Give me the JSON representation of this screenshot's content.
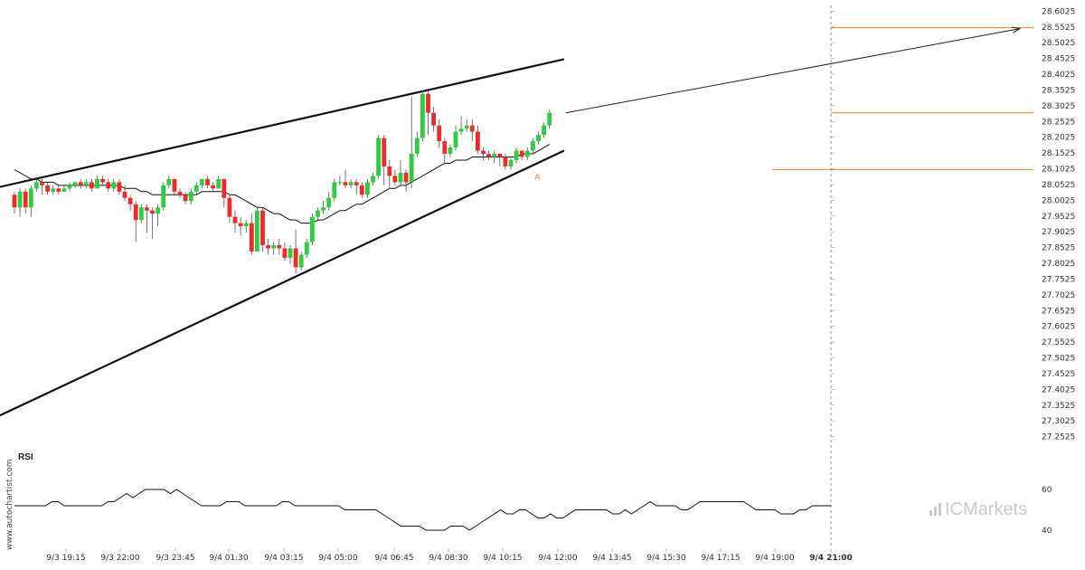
{
  "chart_data": {
    "type": "candlestick",
    "price_axis": {
      "ticks": [
        "28.6025",
        "28.5525",
        "28.5025",
        "28.4525",
        "28.4025",
        "28.3525",
        "28.3025",
        "28.2525",
        "28.2025",
        "28.1525",
        "28.1025",
        "28.0525",
        "28.0025",
        "27.9525",
        "27.9025",
        "27.8525",
        "27.8025",
        "27.7525",
        "27.7025",
        "27.6525",
        "27.6025",
        "27.5525",
        "27.5025",
        "27.4525",
        "27.4025",
        "27.3525",
        "27.3025",
        "27.2525"
      ],
      "range": [
        27.24,
        28.615
      ]
    },
    "time_axis": {
      "ticks": [
        "9/3 19:15",
        "9/3 22:00",
        "9/3 23:45",
        "9/4 01:30",
        "9/4 03:15",
        "9/4 05:00",
        "9/4 06:45",
        "9/4 08:30",
        "9/4 10:15",
        "9/4 12:00",
        "9/4 13:45",
        "9/4 15:30",
        "9/4 17:15",
        "9/4 19:00",
        "9/4 21:00"
      ],
      "highlight": "9/4 21:00"
    },
    "candles": [
      [
        28.02,
        27.98,
        28.03,
        27.96
      ],
      [
        27.98,
        28.03,
        28.04,
        27.95
      ],
      [
        28.03,
        27.98,
        28.04,
        27.96
      ],
      [
        27.98,
        28.04,
        28.05,
        27.95
      ],
      [
        28.04,
        28.06,
        28.07,
        28.03
      ],
      [
        28.06,
        28.05,
        28.07,
        28.02
      ],
      [
        28.05,
        28.03,
        28.06,
        28.02
      ],
      [
        28.03,
        28.04,
        28.05,
        28.02
      ],
      [
        28.04,
        28.03,
        28.05,
        28.02
      ],
      [
        28.03,
        28.04,
        28.05,
        28.03
      ],
      [
        28.04,
        28.05,
        28.06,
        28.03
      ],
      [
        28.05,
        28.06,
        28.06,
        28.04
      ],
      [
        28.06,
        28.05,
        28.07,
        28.04
      ],
      [
        28.05,
        28.06,
        28.07,
        28.04
      ],
      [
        28.06,
        28.04,
        28.07,
        28.03
      ],
      [
        28.04,
        28.07,
        28.08,
        28.04
      ],
      [
        28.07,
        28.06,
        28.08,
        28.05
      ],
      [
        28.06,
        28.04,
        28.07,
        28.03
      ],
      [
        28.04,
        28.06,
        28.07,
        28.03
      ],
      [
        28.06,
        28.03,
        28.07,
        28.02
      ],
      [
        28.03,
        28.01,
        28.05,
        28.0
      ],
      [
        28.01,
        27.99,
        28.02,
        27.97
      ],
      [
        27.99,
        27.94,
        28.0,
        27.87
      ],
      [
        27.94,
        27.98,
        27.99,
        27.93
      ],
      [
        27.98,
        27.97,
        27.99,
        27.9
      ],
      [
        27.97,
        27.96,
        27.98,
        27.88
      ],
      [
        27.96,
        27.98,
        27.99,
        27.92
      ],
      [
        27.98,
        28.05,
        28.06,
        27.97
      ],
      [
        28.05,
        28.07,
        28.08,
        28.04
      ],
      [
        28.07,
        28.03,
        28.07,
        28.02
      ],
      [
        28.03,
        28.02,
        28.04,
        28.01
      ],
      [
        28.02,
        28.0,
        28.03,
        27.99
      ],
      [
        28.0,
        28.03,
        28.04,
        27.99
      ],
      [
        28.03,
        28.05,
        28.06,
        28.02
      ],
      [
        28.05,
        28.07,
        28.07,
        28.04
      ],
      [
        28.07,
        28.05,
        28.08,
        28.04
      ],
      [
        28.05,
        28.04,
        28.06,
        28.03
      ],
      [
        28.04,
        28.07,
        28.08,
        28.04
      ],
      [
        28.07,
        28.01,
        28.07,
        27.98
      ],
      [
        28.01,
        27.95,
        28.02,
        27.93
      ],
      [
        27.95,
        27.93,
        27.97,
        27.9
      ],
      [
        27.93,
        27.92,
        27.95,
        27.89
      ],
      [
        27.92,
        27.93,
        27.94,
        27.9
      ],
      [
        27.93,
        27.84,
        27.96,
        27.83
      ],
      [
        27.84,
        27.97,
        27.98,
        27.84
      ],
      [
        27.97,
        27.86,
        27.98,
        27.84
      ],
      [
        27.86,
        27.85,
        27.88,
        27.83
      ],
      [
        27.85,
        27.86,
        27.87,
        27.83
      ],
      [
        27.86,
        27.85,
        27.88,
        27.83
      ],
      [
        27.85,
        27.82,
        27.87,
        27.81
      ],
      [
        27.82,
        27.85,
        27.86,
        27.8
      ],
      [
        27.85,
        27.79,
        27.91,
        27.77
      ],
      [
        27.79,
        27.83,
        27.84,
        27.78
      ],
      [
        27.83,
        27.87,
        27.88,
        27.82
      ],
      [
        27.87,
        27.95,
        27.96,
        27.86
      ],
      [
        27.95,
        27.97,
        27.98,
        27.94
      ],
      [
        27.97,
        27.98,
        28.0,
        27.96
      ],
      [
        27.98,
        28.01,
        28.03,
        27.97
      ],
      [
        28.01,
        28.06,
        28.07,
        28.0
      ],
      [
        28.06,
        28.06,
        28.08,
        28.05
      ],
      [
        28.06,
        28.05,
        28.1,
        28.04
      ],
      [
        28.05,
        28.06,
        28.07,
        28.04
      ],
      [
        28.06,
        28.05,
        28.07,
        28.02
      ],
      [
        28.05,
        28.02,
        28.06,
        28.01
      ],
      [
        28.02,
        28.06,
        28.07,
        28.01
      ],
      [
        28.06,
        28.08,
        28.09,
        28.05
      ],
      [
        28.08,
        28.2,
        28.21,
        28.07
      ],
      [
        28.2,
        28.11,
        28.21,
        28.05
      ],
      [
        28.11,
        28.08,
        28.13,
        28.04
      ],
      [
        28.08,
        28.06,
        28.1,
        28.05
      ],
      [
        28.06,
        28.09,
        28.13,
        28.05
      ],
      [
        28.09,
        28.06,
        28.1,
        28.03
      ],
      [
        28.06,
        28.15,
        28.33,
        28.04
      ],
      [
        28.15,
        28.2,
        28.22,
        28.14
      ],
      [
        28.2,
        28.34,
        28.35,
        28.19
      ],
      [
        28.34,
        28.28,
        28.35,
        28.21
      ],
      [
        28.28,
        28.24,
        28.3,
        28.22
      ],
      [
        28.24,
        28.19,
        28.26,
        28.17
      ],
      [
        28.19,
        28.15,
        28.2,
        28.12
      ],
      [
        28.15,
        28.17,
        28.18,
        28.14
      ],
      [
        28.17,
        28.22,
        28.24,
        28.16
      ],
      [
        28.22,
        28.23,
        28.27,
        28.21
      ],
      [
        28.23,
        28.24,
        28.26,
        28.22
      ],
      [
        28.24,
        28.22,
        28.26,
        28.19
      ],
      [
        28.22,
        28.16,
        28.24,
        28.15
      ],
      [
        28.16,
        28.15,
        28.17,
        28.13
      ],
      [
        28.15,
        28.14,
        28.16,
        28.13
      ],
      [
        28.14,
        28.15,
        28.16,
        28.12
      ],
      [
        28.15,
        28.14,
        28.15,
        28.11
      ],
      [
        28.14,
        28.11,
        28.15,
        28.1
      ],
      [
        28.11,
        28.13,
        28.14,
        28.1
      ],
      [
        28.13,
        28.16,
        28.17,
        28.12
      ],
      [
        28.16,
        28.14,
        28.16,
        28.13
      ],
      [
        28.14,
        28.16,
        28.17,
        28.13
      ],
      [
        28.16,
        28.19,
        28.2,
        28.15
      ],
      [
        28.19,
        28.21,
        28.22,
        28.18
      ],
      [
        28.21,
        28.24,
        28.25,
        28.2
      ],
      [
        28.24,
        28.28,
        28.29,
        28.23
      ]
    ],
    "moving_average": [
      28.1,
      28.09,
      28.08,
      28.07,
      28.07,
      28.06,
      28.06,
      28.06,
      28.05,
      28.05,
      28.05,
      28.05,
      28.05,
      28.05,
      28.05,
      28.05,
      28.05,
      28.05,
      28.05,
      28.05,
      28.04,
      28.04,
      28.04,
      28.03,
      28.03,
      28.02,
      28.02,
      28.02,
      28.02,
      28.02,
      28.02,
      28.02,
      28.02,
      28.02,
      28.03,
      28.03,
      28.03,
      28.03,
      28.03,
      28.02,
      28.02,
      28.01,
      28.0,
      27.99,
      27.98,
      27.98,
      27.97,
      27.96,
      27.96,
      27.95,
      27.94,
      27.94,
      27.93,
      27.93,
      27.93,
      27.94,
      27.94,
      27.95,
      27.96,
      27.97,
      27.97,
      27.98,
      27.99,
      27.99,
      28.0,
      28.01,
      28.02,
      28.03,
      28.04,
      28.04,
      28.05,
      28.05,
      28.06,
      28.07,
      28.08,
      28.09,
      28.1,
      28.11,
      28.12,
      28.12,
      28.13,
      28.13,
      28.13,
      28.14,
      28.14,
      28.14,
      28.14,
      28.14,
      28.14,
      28.14,
      28.14,
      28.14,
      28.15,
      28.15,
      28.15,
      28.16,
      28.17,
      28.18
    ],
    "trendlines": [
      {
        "from": {
          "index": 0,
          "price": 28.045
        },
        "to": {
          "index": 99,
          "price": 28.45
        }
      },
      {
        "from": {
          "index": 0,
          "price": 27.32
        },
        "to": {
          "index": 99,
          "price": 28.16
        }
      }
    ],
    "projection_arrow": {
      "from": {
        "index": 99,
        "price": 28.28
      },
      "to": {
        "index": 118,
        "price": 28.55
      }
    },
    "levels": [
      {
        "price": 28.55,
        "color": "#e0842a"
      },
      {
        "price": 28.28,
        "color": "#e0842a"
      },
      {
        "price": 28.1,
        "color": "#e0842a"
      }
    ],
    "point_marker": {
      "text": "A",
      "index": 93,
      "price": 28.1,
      "color": "#e0842a"
    },
    "colors": {
      "up": "#2ecc40",
      "down": "#ee2a2a",
      "wick": "#555555",
      "ma": "#111111",
      "trendline": "#111111",
      "grid": "#dddddd"
    },
    "rsi": {
      "label": "RSI",
      "ticks": [
        "60",
        "40"
      ],
      "range": [
        32,
        72
      ],
      "values": [
        52,
        52,
        52,
        52,
        52,
        52,
        54,
        54,
        52,
        52,
        52,
        52,
        52,
        52,
        52,
        54,
        54,
        56,
        58,
        56,
        58,
        60,
        60,
        60,
        60,
        58,
        60,
        58,
        56,
        54,
        52,
        52,
        52,
        52,
        54,
        54,
        54,
        52,
        52,
        52,
        52,
        52,
        52,
        54,
        54,
        52,
        52,
        52,
        52,
        52,
        52,
        52,
        52,
        50,
        50,
        50,
        50,
        50,
        50,
        48,
        46,
        44,
        42,
        42,
        42,
        42,
        40,
        40,
        40,
        40,
        42,
        42,
        42,
        40,
        42,
        44,
        46,
        48,
        50,
        48,
        48,
        50,
        50,
        48,
        46,
        46,
        48,
        46,
        46,
        48,
        50,
        50,
        50,
        50,
        50,
        50,
        48,
        48,
        50,
        48,
        50,
        52,
        54,
        52,
        52,
        52,
        52,
        50,
        50,
        52,
        54,
        54,
        54,
        54,
        54,
        54,
        54,
        54,
        52,
        50,
        50,
        50,
        50,
        48,
        48,
        48,
        50,
        50,
        52,
        52,
        52,
        52
      ]
    }
  },
  "watermark_text": "www.autochartist.com",
  "brand": "ICMarkets"
}
